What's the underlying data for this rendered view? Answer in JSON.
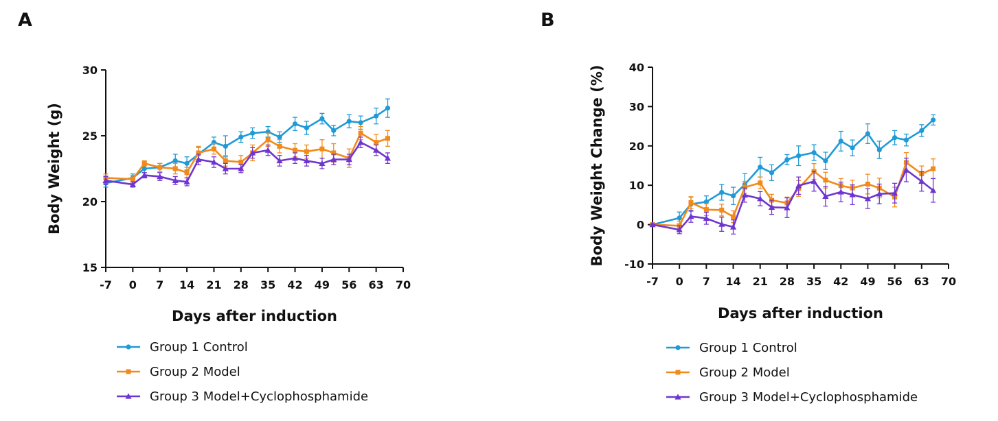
{
  "chart_data": [
    {
      "panel_label": "A",
      "type": "line",
      "ylabel": "Body Weight (g)",
      "xlabel": "Days after induction",
      "xlim": [
        -7,
        70
      ],
      "ylim": [
        15,
        30
      ],
      "xticks": [
        "-7",
        "0",
        "7",
        "14",
        "21",
        "28",
        "35",
        "42",
        "49",
        "56",
        "63",
        "70"
      ],
      "yticks": [
        "15",
        "20",
        "25",
        "30"
      ],
      "x": [
        -7,
        0,
        3,
        7,
        11,
        14,
        17,
        21,
        24,
        28,
        31,
        35,
        38,
        42,
        45,
        49,
        52,
        56,
        59,
        63,
        66
      ],
      "grid": false,
      "legend_position": "bottom-left",
      "series": [
        {
          "name": "Group 1 Control",
          "color": "#1f9ad6",
          "marker": "circle",
          "values": [
            21.4,
            21.8,
            22.5,
            22.6,
            23.1,
            22.9,
            23.6,
            24.5,
            24.2,
            24.9,
            25.2,
            25.3,
            24.9,
            25.9,
            25.6,
            26.3,
            25.4,
            26.1,
            26.0,
            26.5,
            27.1
          ],
          "errors": [
            0.3,
            0.3,
            0.3,
            0.3,
            0.5,
            0.5,
            0.5,
            0.4,
            0.8,
            0.4,
            0.4,
            0.4,
            0.4,
            0.5,
            0.5,
            0.4,
            0.4,
            0.5,
            0.5,
            0.6,
            0.7
          ]
        },
        {
          "name": "Group 2 Model",
          "color": "#f28a1a",
          "marker": "square",
          "values": [
            21.8,
            21.7,
            22.9,
            22.6,
            22.5,
            22.2,
            23.7,
            24.0,
            23.1,
            23.0,
            23.7,
            24.7,
            24.2,
            23.9,
            23.8,
            24.0,
            23.7,
            23.3,
            25.2,
            24.5,
            24.8
          ],
          "errors": [
            0.3,
            0.3,
            0.2,
            0.3,
            0.4,
            0.4,
            0.5,
            0.4,
            0.4,
            0.5,
            0.6,
            0.5,
            0.5,
            0.5,
            0.5,
            0.7,
            0.7,
            0.7,
            0.5,
            0.6,
            0.6
          ]
        },
        {
          "name": "Group 3 Model+Cyclophosphamide",
          "color": "#6f35d1",
          "marker": "triangle",
          "values": [
            21.6,
            21.3,
            22.0,
            21.9,
            21.6,
            21.5,
            23.2,
            23.0,
            22.5,
            22.5,
            23.7,
            23.9,
            23.1,
            23.3,
            23.1,
            22.9,
            23.2,
            23.2,
            24.5,
            23.9,
            23.3
          ],
          "errors": [
            0.3,
            0.2,
            0.2,
            0.3,
            0.3,
            0.3,
            0.4,
            0.4,
            0.4,
            0.3,
            0.4,
            0.4,
            0.4,
            0.4,
            0.4,
            0.4,
            0.4,
            0.4,
            0.4,
            0.4,
            0.4
          ]
        }
      ]
    },
    {
      "panel_label": "B",
      "type": "line",
      "ylabel": "Body Weight Change (%)",
      "xlabel": "Days after induction",
      "xlim": [
        -7,
        70
      ],
      "ylim": [
        -10,
        40
      ],
      "xticks": [
        "-7",
        "0",
        "7",
        "14",
        "21",
        "28",
        "35",
        "42",
        "49",
        "56",
        "63",
        "70"
      ],
      "yticks": [
        "-10",
        "0",
        "10",
        "20",
        "30",
        "40"
      ],
      "x": [
        -7,
        0,
        3,
        7,
        11,
        14,
        17,
        21,
        24,
        28,
        31,
        35,
        38,
        42,
        45,
        49,
        52,
        56,
        59,
        63,
        66
      ],
      "grid": false,
      "legend_position": "bottom-left",
      "series": [
        {
          "name": "Group 1 Control",
          "color": "#1f9ad6",
          "marker": "circle",
          "values": [
            0,
            1.7,
            5.2,
            5.8,
            8.2,
            7.3,
            10.2,
            14.6,
            13.2,
            16.5,
            17.5,
            18.3,
            16.2,
            21.2,
            19.5,
            23.1,
            19.0,
            22.1,
            21.5,
            23.9,
            26.6
          ],
          "errors": [
            0.2,
            1.5,
            1.8,
            1.5,
            2.0,
            2.2,
            2.8,
            2.5,
            2.0,
            1.3,
            2.5,
            2.0,
            2.2,
            2.5,
            2.0,
            2.5,
            2.2,
            1.8,
            1.5,
            1.5,
            1.3
          ]
        },
        {
          "name": "Group 2 Model",
          "color": "#f28a1a",
          "marker": "square",
          "values": [
            0,
            -0.3,
            5.6,
            3.8,
            3.7,
            2.0,
            9.5,
            10.6,
            6.2,
            5.5,
            9.2,
            13.5,
            11.3,
            9.9,
            9.3,
            10.3,
            9.3,
            7.0,
            15.8,
            12.9,
            14.2
          ],
          "errors": [
            0.2,
            1.2,
            1.5,
            1.5,
            1.5,
            1.5,
            1.5,
            1.5,
            1.5,
            1.5,
            2.0,
            2.0,
            2.0,
            1.8,
            2.0,
            2.5,
            2.5,
            2.5,
            2.5,
            2.0,
            2.5
          ]
        },
        {
          "name": "Group 3 Model+Cyclophosphamide",
          "color": "#6f35d1",
          "marker": "triangle",
          "values": [
            0,
            -1.3,
            2.1,
            1.6,
            0.1,
            -0.6,
            7.5,
            6.6,
            4.4,
            4.3,
            9.9,
            11.0,
            7.2,
            8.3,
            7.6,
            6.6,
            7.8,
            8.0,
            13.9,
            11.0,
            8.7
          ],
          "errors": [
            0.2,
            1.0,
            1.5,
            1.5,
            1.8,
            1.8,
            1.8,
            1.8,
            1.8,
            2.5,
            2.2,
            2.5,
            2.5,
            2.5,
            2.5,
            2.5,
            2.5,
            2.5,
            3.0,
            2.5,
            3.0
          ]
        }
      ]
    }
  ]
}
